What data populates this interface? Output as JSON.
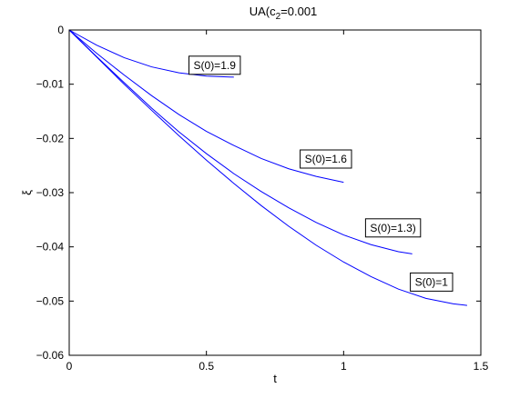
{
  "chart_data": {
    "type": "line",
    "title": "UA(c",
    "title_subscript": "2",
    "title_suffix": "=0.001",
    "xlabel": "t",
    "ylabel": "ξ",
    "xlim": [
      0,
      1.5
    ],
    "ylim": [
      -0.06,
      0
    ],
    "xticks": [
      0,
      0.5,
      1,
      1.5
    ],
    "xtick_labels": [
      "0",
      "0.5",
      "1",
      "1.5"
    ],
    "yticks": [
      0,
      -0.01,
      -0.02,
      -0.03,
      -0.04,
      -0.05,
      -0.06
    ],
    "ytick_labels": [
      "0",
      "−0.01",
      "−0.02",
      "−0.03",
      "−0.04",
      "−0.05",
      "−0.06"
    ],
    "grid": false,
    "line_color": "#0000ff",
    "series": [
      {
        "name": "S(0)=1.9",
        "x": [
          0,
          0.1,
          0.2,
          0.3,
          0.4,
          0.5,
          0.6
        ],
        "y": [
          0,
          -0.0028,
          -0.0051,
          -0.0068,
          -0.0079,
          -0.0085,
          -0.0087
        ]
      },
      {
        "name": "S(0)=1.6",
        "x": [
          0,
          0.1,
          0.2,
          0.3,
          0.4,
          0.5,
          0.6,
          0.7,
          0.8,
          0.9,
          1.0
        ],
        "y": [
          0,
          -0.0043,
          -0.0083,
          -0.0121,
          -0.0156,
          -0.0187,
          -0.0213,
          -0.0237,
          -0.0256,
          -0.027,
          -0.0281
        ]
      },
      {
        "name": "S(0)=1.3)",
        "x": [
          0,
          0.1,
          0.2,
          0.3,
          0.4,
          0.5,
          0.6,
          0.7,
          0.8,
          0.9,
          1.0,
          1.1,
          1.2,
          1.25
        ],
        "y": [
          0,
          -0.0049,
          -0.0097,
          -0.0144,
          -0.0188,
          -0.0228,
          -0.0265,
          -0.0298,
          -0.0328,
          -0.0355,
          -0.0378,
          -0.0396,
          -0.0409,
          -0.0413
        ]
      },
      {
        "name": "S(0)=1",
        "x": [
          0,
          0.1,
          0.2,
          0.3,
          0.4,
          0.5,
          0.6,
          0.7,
          0.8,
          0.9,
          1.0,
          1.1,
          1.2,
          1.3,
          1.4,
          1.45
        ],
        "y": [
          0,
          -0.005,
          -0.01,
          -0.0148,
          -0.0195,
          -0.024,
          -0.0283,
          -0.0324,
          -0.0362,
          -0.0397,
          -0.0428,
          -0.0455,
          -0.0478,
          -0.0495,
          -0.0505,
          -0.0508
        ]
      }
    ],
    "annotations": [
      {
        "text": "S(0)=1.9",
        "x": 0.53,
        "y": -0.0065
      },
      {
        "text": "S(0)=1.6",
        "x": 0.935,
        "y": -0.0238
      },
      {
        "text": "S(0)=1.3)",
        "x": 1.18,
        "y": -0.0365
      },
      {
        "text": "S(0)=1",
        "x": 1.32,
        "y": -0.0465
      }
    ]
  }
}
